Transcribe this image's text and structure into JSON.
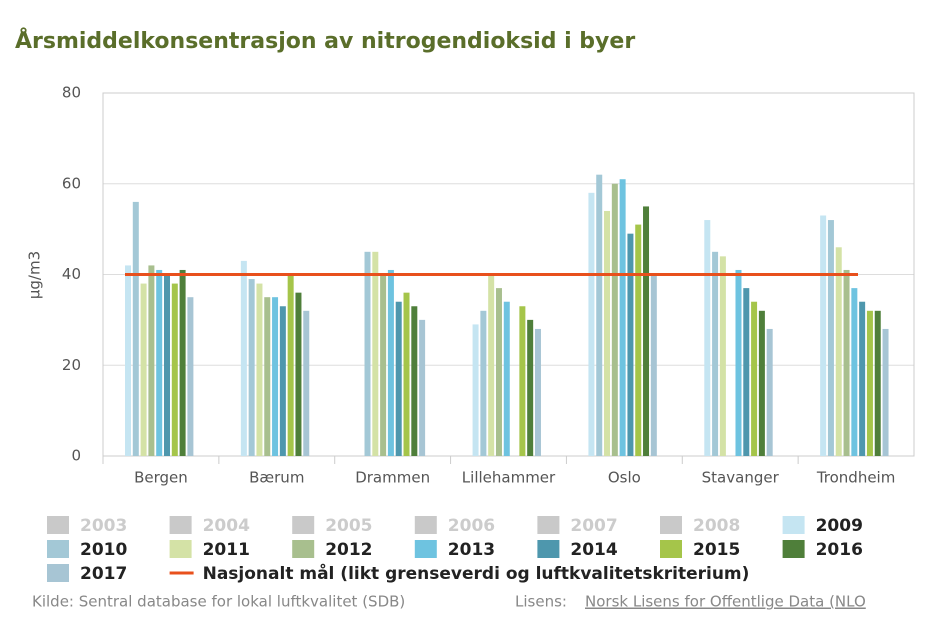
{
  "chart_data": {
    "type": "bar",
    "title": "Årsmiddelkonsentrasjon av nitrogendioksid i byer",
    "y_label": "µg/m3",
    "categories": [
      "Bergen",
      "Bærum",
      "Drammen",
      "Lillehammer",
      "Oslo",
      "Stavanger",
      "Trondheim"
    ],
    "ylim": [
      0,
      80
    ],
    "yticks": [
      0,
      20,
      40,
      60,
      80
    ],
    "grid": true,
    "series": [
      {
        "name": "2003",
        "color": "#c9c9c9",
        "visible": false,
        "values": [
          null,
          null,
          null,
          null,
          null,
          null,
          null
        ]
      },
      {
        "name": "2004",
        "color": "#c9c9c9",
        "visible": false,
        "values": [
          null,
          null,
          null,
          null,
          null,
          null,
          null
        ]
      },
      {
        "name": "2005",
        "color": "#c9c9c9",
        "visible": false,
        "values": [
          null,
          null,
          null,
          null,
          null,
          null,
          null
        ]
      },
      {
        "name": "2006",
        "color": "#c9c9c9",
        "visible": false,
        "values": [
          null,
          null,
          null,
          null,
          null,
          null,
          null
        ]
      },
      {
        "name": "2007",
        "color": "#c9c9c9",
        "visible": false,
        "values": [
          null,
          null,
          null,
          null,
          null,
          null,
          null
        ]
      },
      {
        "name": "2008",
        "color": "#c9c9c9",
        "visible": false,
        "values": [
          null,
          null,
          null,
          null,
          null,
          null,
          null
        ]
      },
      {
        "name": "2009",
        "color": "#c5e5f2",
        "visible": true,
        "values": [
          42,
          43,
          null,
          29,
          58,
          52,
          53
        ]
      },
      {
        "name": "2010",
        "color": "#a3c8d6",
        "visible": true,
        "values": [
          56,
          39,
          45,
          32,
          62,
          45,
          52
        ]
      },
      {
        "name": "2011",
        "color": "#d4e2a6",
        "visible": true,
        "values": [
          38,
          38,
          45,
          40,
          54,
          44,
          46
        ]
      },
      {
        "name": "2012",
        "color": "#a8bf8e",
        "visible": true,
        "values": [
          42,
          35,
          40,
          37,
          60,
          null,
          41
        ]
      },
      {
        "name": "2013",
        "color": "#6ec3e0",
        "visible": true,
        "values": [
          41,
          35,
          41,
          34,
          61,
          41,
          37
        ]
      },
      {
        "name": "2014",
        "color": "#4e97ad",
        "visible": true,
        "values": [
          40,
          33,
          34,
          null,
          49,
          37,
          34
        ]
      },
      {
        "name": "2015",
        "color": "#a5c54a",
        "visible": true,
        "values": [
          38,
          40,
          36,
          33,
          51,
          34,
          32
        ]
      },
      {
        "name": "2016",
        "color": "#4f7f3a",
        "visible": true,
        "values": [
          41,
          36,
          33,
          30,
          55,
          32,
          32
        ]
      },
      {
        "name": "2017",
        "color": "#a7c5d4",
        "visible": true,
        "values": [
          35,
          32,
          30,
          28,
          40,
          28,
          28
        ]
      }
    ],
    "target": {
      "name": "Nasjonalt mål (likt grenseverdi og luftkvalitetskriterium)",
      "value": 40,
      "color": "#e8501c"
    },
    "source": "Kilde: Sentral database for lokal luftkvalitet (SDB)",
    "license_label": "Lisens:",
    "license_link": "Norsk Lisens for Offentlige Data (NLO"
  }
}
